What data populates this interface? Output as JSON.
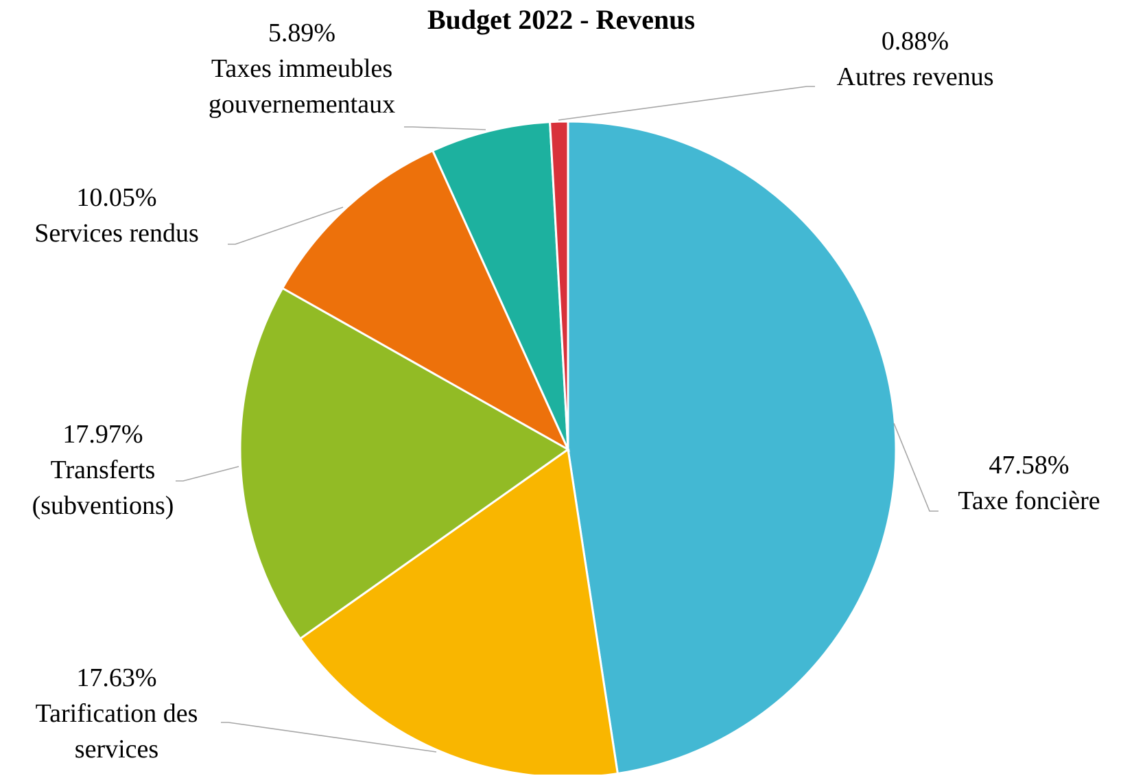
{
  "chart_data": {
    "type": "pie",
    "title": "Budget 2022 - Revenus",
    "slices": [
      {
        "label": "Taxe foncière",
        "label_lines": [
          "Taxe foncière"
        ],
        "value": 47.58,
        "value_text": "47.58%",
        "color": "#43b8d3"
      },
      {
        "label": "Tarification des services",
        "label_lines": [
          "Tarification des",
          "services"
        ],
        "value": 17.63,
        "value_text": "17.63%",
        "color": "#f9b600"
      },
      {
        "label": "Transferts (subventions)",
        "label_lines": [
          "Transferts",
          "(subventions)"
        ],
        "value": 17.97,
        "value_text": "17.97%",
        "color": "#92bb25"
      },
      {
        "label": "Services rendus",
        "label_lines": [
          "Services rendus"
        ],
        "value": 10.05,
        "value_text": "10.05%",
        "color": "#ed710b"
      },
      {
        "label": "Taxes immeubles gouvernementaux",
        "label_lines": [
          "Taxes immeubles",
          "gouvernementaux"
        ],
        "value": 5.89,
        "value_text": "5.89%",
        "color": "#1db19f"
      },
      {
        "label": "Autres revenus",
        "label_lines": [
          "Autres revenus"
        ],
        "value": 0.88,
        "value_text": "0.88%",
        "color": "#d8313a"
      }
    ],
    "start_angle_deg": 0,
    "direction": "clockwise",
    "legend": "none",
    "data_labels": "outside with leader lines"
  }
}
